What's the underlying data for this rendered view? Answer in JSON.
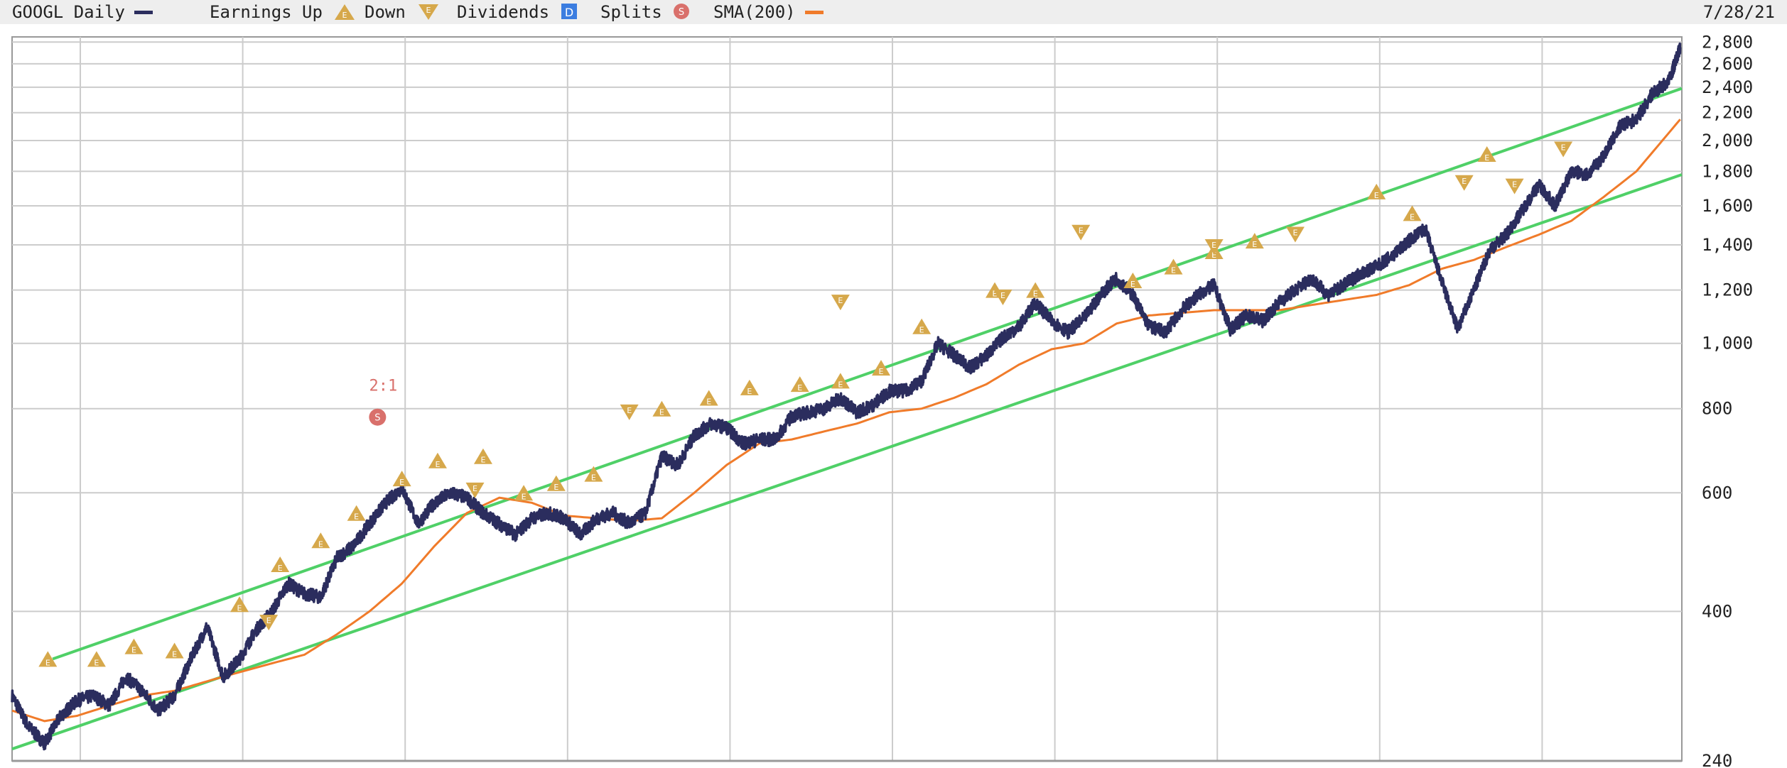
{
  "legend": {
    "symbol_label": "GOOGL Daily",
    "earnings_up_label": "Earnings Up",
    "down_label": "Down",
    "dividends_label": "Dividends",
    "dividend_marker_text": "D",
    "splits_label": "Splits",
    "split_marker_text": "S",
    "sma_label": "SMA(200)",
    "date": "7/28/21"
  },
  "colors": {
    "price": "#2b2d5e",
    "sma": "#f07b2a",
    "channel": "#4fd067",
    "earnings": "#d6a84b",
    "split": "#d9706b",
    "dividend": "#3b7de0",
    "grid": "#cccccc",
    "header_bg": "#eeeeee"
  },
  "chart_data": {
    "type": "line",
    "title": "GOOGL Daily",
    "y_scale": "log",
    "ylim": [
      240,
      2850
    ],
    "xlim": [
      2011.3,
      2021.58
    ],
    "y_ticks": [
      240,
      400,
      600,
      800,
      1000,
      1200,
      1400,
      1600,
      1800,
      2000,
      2200,
      2400,
      2600,
      2800
    ],
    "y_tick_labels": [
      "240",
      "400",
      "600",
      "800",
      "1,000",
      "1,200",
      "1,400",
      "1,600",
      "1,800",
      "2,000",
      "2,200",
      "2,400",
      "2,600",
      "2,800"
    ],
    "x_gridlines": [
      2011.72,
      2012.72,
      2013.72,
      2014.72,
      2015.72,
      2016.72,
      2017.72,
      2018.72,
      2019.72,
      2020.72
    ],
    "grid": true,
    "series": [
      {
        "name": "GOOGL Daily",
        "x": [
          2011.3,
          2011.4,
          2011.5,
          2011.6,
          2011.7,
          2011.8,
          2011.9,
          2012.0,
          2012.1,
          2012.2,
          2012.3,
          2012.4,
          2012.5,
          2012.6,
          2012.7,
          2012.8,
          2012.9,
          2013.0,
          2013.1,
          2013.2,
          2013.3,
          2013.4,
          2013.5,
          2013.6,
          2013.7,
          2013.8,
          2013.9,
          2014.0,
          2014.1,
          2014.2,
          2014.3,
          2014.4,
          2014.5,
          2014.6,
          2014.7,
          2014.8,
          2014.9,
          2015.0,
          2015.1,
          2015.2,
          2015.3,
          2015.4,
          2015.5,
          2015.6,
          2015.7,
          2015.8,
          2015.9,
          2016.0,
          2016.1,
          2016.2,
          2016.3,
          2016.4,
          2016.5,
          2016.6,
          2016.7,
          2016.8,
          2016.9,
          2017.0,
          2017.1,
          2017.2,
          2017.3,
          2017.4,
          2017.5,
          2017.6,
          2017.7,
          2017.8,
          2017.9,
          2018.0,
          2018.1,
          2018.2,
          2018.3,
          2018.4,
          2018.5,
          2018.6,
          2018.7,
          2018.8,
          2018.9,
          2019.0,
          2019.1,
          2019.2,
          2019.3,
          2019.4,
          2019.5,
          2019.6,
          2019.7,
          2019.8,
          2019.9,
          2020.0,
          2020.1,
          2020.2,
          2020.3,
          2020.4,
          2020.5,
          2020.6,
          2020.7,
          2020.8,
          2020.9,
          2021.0,
          2021.1,
          2021.2,
          2021.3,
          2021.4,
          2021.5,
          2021.57
        ],
        "values": [
          300,
          270,
          255,
          280,
          295,
          300,
          290,
          320,
          305,
          285,
          300,
          340,
          380,
          320,
          340,
          375,
          400,
          440,
          425,
          420,
          480,
          500,
          540,
          580,
          610,
          540,
          580,
          600,
          590,
          560,
          540,
          520,
          550,
          560,
          550,
          520,
          550,
          560,
          540,
          560,
          680,
          660,
          730,
          760,
          750,
          710,
          720,
          720,
          780,
          790,
          800,
          830,
          790,
          810,
          850,
          850,
          880,
          1000,
          960,
          920,
          960,
          1020,
          1060,
          1150,
          1080,
          1040,
          1090,
          1180,
          1250,
          1180,
          1060,
          1040,
          1120,
          1180,
          1220,
          1050,
          1100,
          1080,
          1150,
          1200,
          1250,
          1180,
          1220,
          1270,
          1300,
          1350,
          1420,
          1480,
          1240,
          1050,
          1200,
          1380,
          1450,
          1580,
          1720,
          1600,
          1800,
          1780,
          1900,
          2100,
          2150,
          2350,
          2450,
          2750
        ]
      },
      {
        "name": "SMA(200)",
        "x": [
          2011.3,
          2011.5,
          2011.7,
          2011.9,
          2012.1,
          2012.3,
          2012.5,
          2012.7,
          2012.9,
          2013.1,
          2013.3,
          2013.5,
          2013.7,
          2013.9,
          2014.1,
          2014.3,
          2014.5,
          2014.7,
          2014.9,
          2015.1,
          2015.3,
          2015.5,
          2015.7,
          2015.9,
          2016.1,
          2016.3,
          2016.5,
          2016.7,
          2016.9,
          2017.1,
          2017.3,
          2017.5,
          2017.7,
          2017.9,
          2018.1,
          2018.3,
          2018.5,
          2018.7,
          2018.9,
          2019.1,
          2019.3,
          2019.5,
          2019.7,
          2019.9,
          2020.1,
          2020.3,
          2020.5,
          2020.7,
          2020.9,
          2021.1,
          2021.3,
          2021.57
        ],
        "values": [
          285,
          275,
          280,
          290,
          300,
          305,
          315,
          325,
          335,
          345,
          370,
          400,
          440,
          500,
          560,
          590,
          580,
          555,
          550,
          545,
          550,
          600,
          660,
          710,
          720,
          740,
          760,
          790,
          800,
          830,
          870,
          930,
          980,
          1000,
          1070,
          1100,
          1110,
          1120,
          1120,
          1120,
          1140,
          1160,
          1180,
          1220,
          1290,
          1330,
          1390,
          1450,
          1520,
          1650,
          1800,
          2150
        ]
      }
    ],
    "channel_lines": [
      {
        "x": [
          2011.3,
          2021.58
        ],
        "values": [
          250,
          1780
        ]
      },
      {
        "x": [
          2011.55,
          2021.58
        ],
        "values": [
          340,
          2390
        ]
      }
    ],
    "earnings_up": [
      {
        "x": 2011.52,
        "y": 340
      },
      {
        "x": 2011.82,
        "y": 340
      },
      {
        "x": 2012.05,
        "y": 355
      },
      {
        "x": 2012.3,
        "y": 350
      },
      {
        "x": 2012.7,
        "y": 410
      },
      {
        "x": 2012.95,
        "y": 470
      },
      {
        "x": 2013.2,
        "y": 510
      },
      {
        "x": 2013.42,
        "y": 560
      },
      {
        "x": 2013.7,
        "y": 630
      },
      {
        "x": 2013.92,
        "y": 670
      },
      {
        "x": 2014.2,
        "y": 680
      },
      {
        "x": 2014.45,
        "y": 600
      },
      {
        "x": 2014.65,
        "y": 620
      },
      {
        "x": 2014.88,
        "y": 640
      },
      {
        "x": 2015.3,
        "y": 800
      },
      {
        "x": 2015.59,
        "y": 830
      },
      {
        "x": 2015.84,
        "y": 860
      },
      {
        "x": 2016.15,
        "y": 870
      },
      {
        "x": 2016.4,
        "y": 880
      },
      {
        "x": 2016.65,
        "y": 920
      },
      {
        "x": 2016.9,
        "y": 1060
      },
      {
        "x": 2017.35,
        "y": 1200
      },
      {
        "x": 2017.6,
        "y": 1200
      },
      {
        "x": 2018.2,
        "y": 1240
      },
      {
        "x": 2018.45,
        "y": 1300
      },
      {
        "x": 2018.7,
        "y": 1370
      },
      {
        "x": 2018.95,
        "y": 1420
      },
      {
        "x": 2019.7,
        "y": 1680
      },
      {
        "x": 2019.92,
        "y": 1560
      },
      {
        "x": 2020.38,
        "y": 1910
      }
    ],
    "earnings_down": [
      {
        "x": 2012.88,
        "y": 385
      },
      {
        "x": 2014.15,
        "y": 605
      },
      {
        "x": 2015.1,
        "y": 790
      },
      {
        "x": 2016.4,
        "y": 1150
      },
      {
        "x": 2017.4,
        "y": 1170
      },
      {
        "x": 2017.88,
        "y": 1460
      },
      {
        "x": 2018.7,
        "y": 1390
      },
      {
        "x": 2019.2,
        "y": 1450
      },
      {
        "x": 2020.24,
        "y": 1730
      },
      {
        "x": 2020.55,
        "y": 1710
      },
      {
        "x": 2020.85,
        "y": 1940
      }
    ],
    "splits": [
      {
        "x": 2013.55,
        "y": 800,
        "label": "2:1"
      }
    ]
  }
}
